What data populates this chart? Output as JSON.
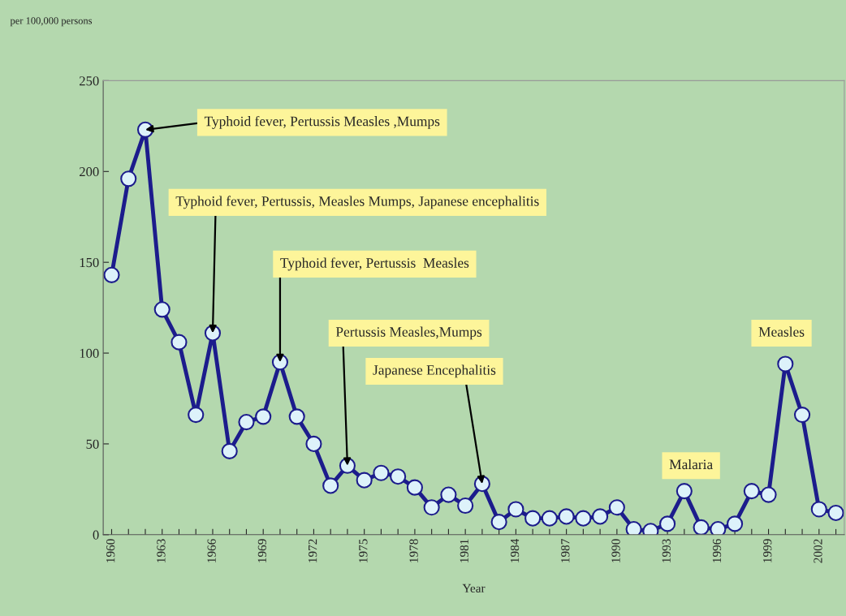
{
  "chart_data": {
    "type": "line",
    "ylabel": "per 100,000 persons",
    "xlabel": "Year",
    "x": [
      1960,
      1961,
      1962,
      1963,
      1964,
      1965,
      1966,
      1967,
      1968,
      1969,
      1970,
      1971,
      1972,
      1973,
      1974,
      1975,
      1976,
      1977,
      1978,
      1979,
      1980,
      1981,
      1982,
      1983,
      1984,
      1985,
      1986,
      1987,
      1988,
      1989,
      1990,
      1991,
      1992,
      1993,
      1994,
      1995,
      1996,
      1997,
      1998,
      1999,
      2000,
      2001,
      2002,
      2003
    ],
    "series": [
      {
        "color": "#1c1c8c",
        "values": [
          143,
          196,
          223,
          124,
          106,
          66,
          111,
          46,
          62,
          65,
          95,
          65,
          50,
          27,
          38,
          30,
          34,
          32,
          26,
          15,
          22,
          16,
          28,
          7,
          14,
          9,
          9,
          10,
          9,
          10,
          15,
          3,
          2,
          6,
          24,
          4,
          3,
          6,
          24,
          22,
          94,
          66,
          14,
          12
        ]
      }
    ],
    "marker": "circle",
    "line_style": "solid",
    "grid": false,
    "xlim": [
      1959.5,
      2003.5
    ],
    "xticks": [
      {
        "value": 1960,
        "label": "1960"
      },
      {
        "value": 1961,
        "label": null
      },
      {
        "value": 1962,
        "label": null
      },
      {
        "value": 1963,
        "label": "1963"
      },
      {
        "value": 1964,
        "label": null
      },
      {
        "value": 1965,
        "label": null
      },
      {
        "value": 1966,
        "label": "1966"
      },
      {
        "value": 1967,
        "label": null
      },
      {
        "value": 1968,
        "label": null
      },
      {
        "value": 1969,
        "label": "1969"
      },
      {
        "value": 1970,
        "label": null
      },
      {
        "value": 1971,
        "label": null
      },
      {
        "value": 1972,
        "label": "1972"
      },
      {
        "value": 1973,
        "label": null
      },
      {
        "value": 1974,
        "label": null
      },
      {
        "value": 1975,
        "label": "1975"
      },
      {
        "value": 1976,
        "label": null
      },
      {
        "value": 1977,
        "label": null
      },
      {
        "value": 1978,
        "label": "1978"
      },
      {
        "value": 1979,
        "label": null
      },
      {
        "value": 1980,
        "label": null
      },
      {
        "value": 1981,
        "label": "1981"
      },
      {
        "value": 1982,
        "label": null
      },
      {
        "value": 1983,
        "label": null
      },
      {
        "value": 1984,
        "label": "1984"
      },
      {
        "value": 1985,
        "label": null
      },
      {
        "value": 1986,
        "label": null
      },
      {
        "value": 1987,
        "label": "1987"
      },
      {
        "value": 1988,
        "label": null
      },
      {
        "value": 1989,
        "label": null
      },
      {
        "value": 1990,
        "label": "1990"
      },
      {
        "value": 1991,
        "label": null
      },
      {
        "value": 1992,
        "label": null
      },
      {
        "value": 1993,
        "label": "1993"
      },
      {
        "value": 1994,
        "label": null
      },
      {
        "value": 1995,
        "label": null
      },
      {
        "value": 1996,
        "label": "1996"
      },
      {
        "value": 1997,
        "label": null
      },
      {
        "value": 1998,
        "label": null
      },
      {
        "value": 1999,
        "label": "1999"
      },
      {
        "value": 2000,
        "label": null
      },
      {
        "value": 2001,
        "label": null
      },
      {
        "value": 2002,
        "label": "2002"
      },
      {
        "value": 2003,
        "label": null
      }
    ],
    "ylim": [
      0,
      250
    ],
    "yticks": [
      0,
      50,
      100,
      150,
      200,
      250
    ],
    "annotations": [
      {
        "text": "Typhoid fever, Pertussis Measles ,Mumps",
        "x": 1962,
        "y": 223
      },
      {
        "text": "Typhoid fever, Pertussis, Measles Mumps, Japanese encephalitis",
        "x": 1966,
        "y": 111
      },
      {
        "text": "Typhoid fever, Pertussis  Measles",
        "x": 1970,
        "y": 95
      },
      {
        "text": "Pertussis Measles,Mumps",
        "x": 1974,
        "y": 38
      },
      {
        "text": "Japanese Encephalitis",
        "x": 1982,
        "y": 28
      },
      {
        "text": "Malaria",
        "x": 1994,
        "y": 24
      },
      {
        "text": "Measles",
        "x": 2000,
        "y": 94
      }
    ]
  }
}
